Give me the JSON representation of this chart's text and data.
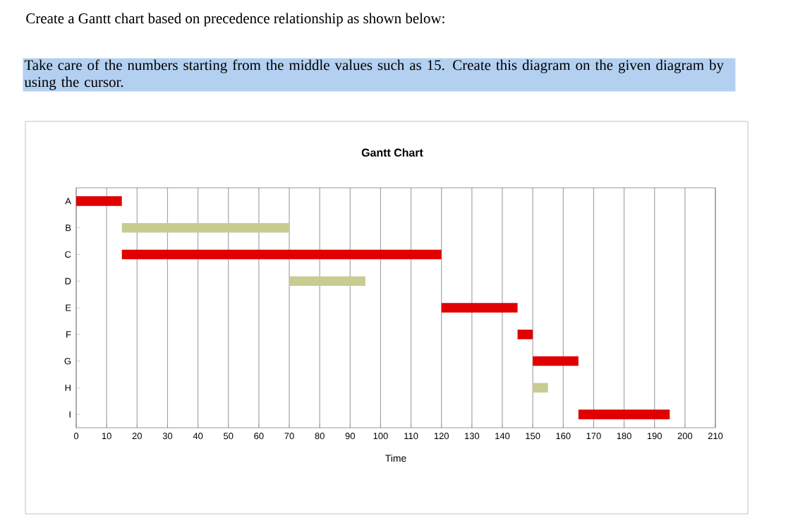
{
  "chart_data": {
    "type": "bar",
    "orientation": "horizontal",
    "title": "Gantt Chart",
    "xlabel": "Time",
    "annotations": [
      "Create a Gantt chart based on precedence relationship as shown below:",
      "Take care of the numbers starting from the middle values such as 15. Create this diagram on the given diagram by using the cursor."
    ],
    "categories": [
      "A",
      "B",
      "C",
      "D",
      "E",
      "F",
      "G",
      "H",
      "I"
    ],
    "base": [
      0,
      15,
      15,
      70,
      120,
      145,
      150,
      150,
      165
    ],
    "values": [
      15,
      55,
      105,
      25,
      25,
      5,
      15,
      5,
      30
    ],
    "colors": [
      "#e00000",
      "#c8cc90",
      "#e00000",
      "#c8cc90",
      "#e00000",
      "#e00000",
      "#e00000",
      "#c8cc90",
      "#e00000"
    ],
    "xlim": [
      0,
      210
    ],
    "xticks": [
      0,
      10,
      20,
      30,
      40,
      50,
      60,
      70,
      80,
      90,
      100,
      110,
      120,
      130,
      140,
      150,
      160,
      170,
      180,
      190,
      200,
      210
    ],
    "grid": "x"
  }
}
